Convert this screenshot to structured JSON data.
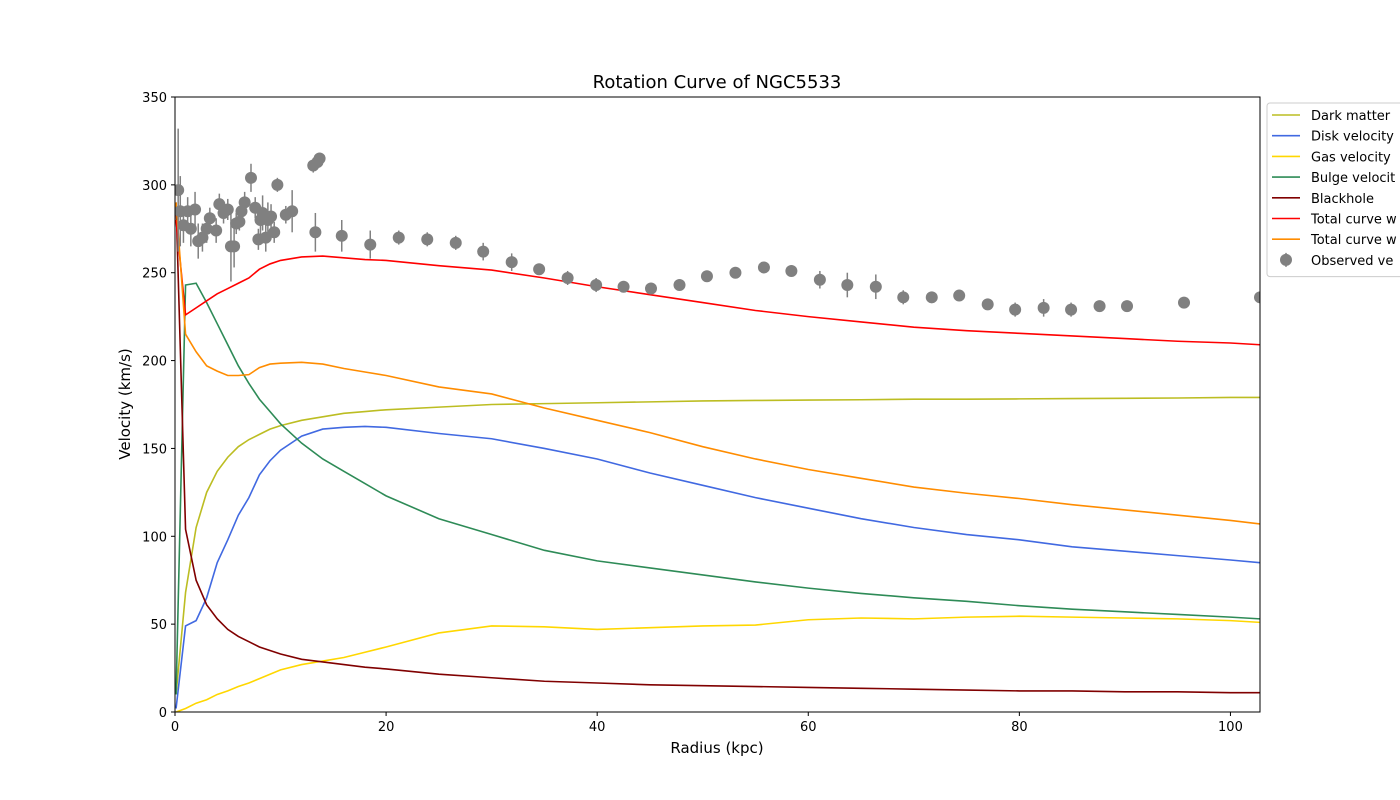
{
  "chart_data": {
    "type": "line",
    "title": "Rotation Curve of NGC5533",
    "xlabel": "Radius (kpc)",
    "ylabel": "Velocity (km/s)",
    "xlim": [
      0,
      102.8
    ],
    "ylim": [
      0,
      350
    ],
    "xticks": [
      0,
      20,
      40,
      60,
      80,
      100
    ],
    "yticks": [
      0,
      50,
      100,
      150,
      200,
      250,
      300,
      350
    ],
    "grid": false,
    "legend": "upper right",
    "x": [
      0.1,
      1,
      2,
      3,
      4,
      5,
      6,
      7,
      8,
      9,
      10,
      12,
      14,
      16,
      18,
      20,
      25,
      30,
      35,
      40,
      45,
      50,
      55,
      60,
      65,
      70,
      75,
      80,
      85,
      90,
      95,
      100,
      102.8
    ],
    "series": [
      {
        "name": "Dark matter",
        "color": "#bcbd22",
        "type": "line",
        "values": [
          10,
          68,
          105,
          125,
          137,
          145,
          151,
          155,
          158,
          161,
          163,
          166,
          168,
          170,
          171,
          172,
          173.5,
          175,
          175.5,
          176,
          176.5,
          177,
          177.3,
          177.5,
          177.7,
          178,
          178,
          178.2,
          178.4,
          178.5,
          178.7,
          179,
          179
        ]
      },
      {
        "name": "Disk velocity",
        "color": "#4169e1",
        "type": "line",
        "values": [
          2,
          49,
          52,
          65,
          85,
          98,
          112,
          122,
          135,
          143,
          149,
          157,
          161,
          162,
          162.5,
          162,
          158.5,
          155.5,
          150,
          144,
          136,
          129,
          122,
          116,
          110,
          105,
          101,
          98,
          94,
          91.5,
          89,
          86.5,
          85
        ]
      },
      {
        "name": "Gas velocity",
        "color": "#ffd700",
        "type": "line",
        "values": [
          0,
          2,
          5,
          7,
          10,
          12,
          14.5,
          16.5,
          19,
          21.5,
          24,
          27,
          29,
          31,
          34,
          37,
          45,
          49,
          48.5,
          47,
          48,
          49,
          49.5,
          52.5,
          53.5,
          53,
          54,
          54.5,
          54,
          53.5,
          53,
          52,
          51
        ]
      },
      {
        "name": "Bulge velocit",
        "color": "#2e8b57",
        "type": "line",
        "values": [
          10,
          243,
          244,
          233,
          221,
          209,
          197,
          187,
          178,
          171,
          164,
          153,
          144,
          137,
          130,
          123,
          110,
          101,
          92,
          86,
          82,
          78,
          74,
          70.5,
          67.5,
          65,
          63,
          60.5,
          58.5,
          57,
          55.5,
          54,
          53
        ]
      },
      {
        "name": "Blackhole",
        "color": "#800000",
        "type": "line",
        "values": [
          290,
          104,
          75,
          61,
          53,
          47,
          43,
          40,
          37,
          35,
          33,
          30,
          28.5,
          27,
          25.5,
          24.5,
          21.5,
          19.5,
          17.5,
          16.5,
          15.5,
          15,
          14.5,
          14,
          13.5,
          13,
          12.5,
          12,
          12,
          11.5,
          11.5,
          11,
          11
        ]
      },
      {
        "name": "Total curve w",
        "color": "#ff0000",
        "type": "line",
        "values": [
          280,
          226,
          230,
          234,
          238,
          241,
          244,
          247,
          252,
          255,
          257,
          259,
          259.5,
          258.5,
          257.5,
          257,
          254,
          251.5,
          247,
          242,
          237.5,
          233,
          228.5,
          225,
          222,
          219,
          217,
          215.5,
          214,
          212.5,
          211,
          210,
          209
        ]
      },
      {
        "name": "Total curve w",
        "color": "#ff8c00",
        "type": "line",
        "values": [
          290,
          215,
          205,
          197,
          194,
          191.5,
          191.5,
          192,
          196,
          198,
          198.5,
          199,
          198,
          195.5,
          193.5,
          191.5,
          185,
          181,
          173,
          166,
          159,
          151,
          144,
          138,
          133,
          128,
          124.5,
          121.5,
          118,
          115,
          112,
          109,
          107
        ]
      },
      {
        "name": "Observed ve",
        "color": "#808080",
        "type": "errorbar",
        "x": [
          0.3,
          0.5,
          0.8,
          1.2,
          1.5,
          1.9,
          2.2,
          2.6,
          3,
          3.3,
          3.9,
          4.2,
          4.6,
          5,
          5.3,
          5.6,
          5.8,
          6.1,
          6.3,
          6.6,
          7.2,
          7.6,
          7.9,
          8.1,
          8.3,
          8.6,
          8.8,
          9.1,
          9.4,
          9.7,
          10.5,
          11.1,
          13.1,
          13.5,
          13.7,
          13.3,
          15.8,
          18.5,
          21.2,
          23.9,
          26.6,
          29.2,
          31.9,
          34.5,
          37.2,
          39.9,
          42.5,
          45.1,
          47.8,
          50.4,
          53.1,
          55.8,
          58.4,
          61.1,
          63.7,
          66.4,
          69,
          71.7,
          74.3,
          77,
          79.6,
          82.3,
          84.9,
          87.6,
          90.2,
          95.6,
          102.8
        ],
        "values": [
          297,
          285,
          277,
          285,
          275,
          286,
          268,
          270,
          275,
          281,
          274,
          289,
          284,
          286,
          265,
          265,
          278,
          279,
          285,
          290,
          304,
          287,
          269,
          280,
          284,
          270,
          280,
          282,
          273,
          300,
          283,
          285,
          311,
          313,
          315,
          273,
          271,
          266,
          270,
          269,
          267,
          262,
          256,
          252,
          247,
          243,
          242,
          241,
          243,
          248,
          250,
          253,
          251,
          246,
          243,
          242,
          236,
          236,
          237,
          232,
          229,
          230,
          229,
          231,
          231,
          233,
          236
        ],
        "errors": [
          35,
          20,
          10,
          8,
          10,
          10,
          10,
          8,
          8,
          6,
          7,
          6,
          6,
          6,
          20,
          12,
          6,
          5,
          5,
          6,
          8,
          6,
          6,
          8,
          10,
          8,
          10,
          7,
          6,
          4,
          5,
          12,
          4,
          3,
          3,
          11,
          9,
          8,
          4,
          4,
          4,
          5,
          5,
          3,
          4,
          4,
          3,
          3,
          3,
          3,
          3,
          3,
          3,
          5,
          7,
          7,
          4,
          3,
          3,
          3,
          4,
          5,
          4,
          3,
          3,
          3,
          3
        ]
      }
    ]
  }
}
